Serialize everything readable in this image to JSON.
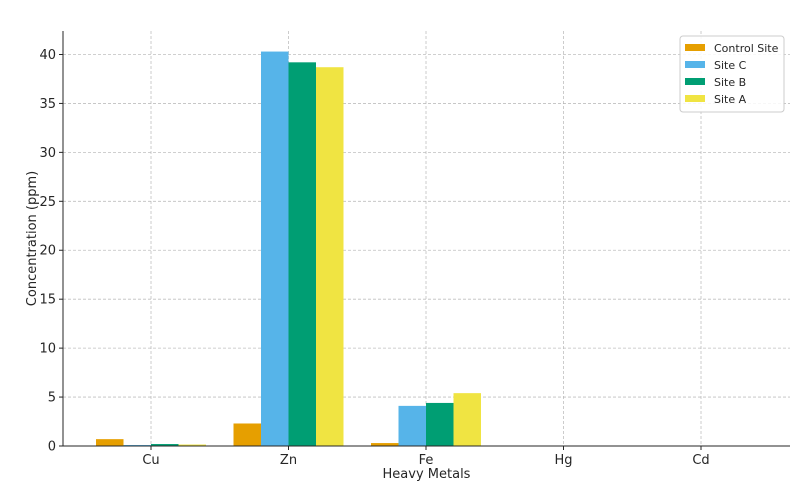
{
  "chart_data": {
    "type": "bar",
    "title": "",
    "xlabel": "Heavy Metals",
    "ylabel": "Concentration (ppm)",
    "categories": [
      "Cu",
      "Zn",
      "Fe",
      "Hg",
      "Cd"
    ],
    "ylim": [
      0,
      42.4
    ],
    "yticks": [
      0,
      5,
      10,
      15,
      20,
      25,
      30,
      35,
      40
    ],
    "grid": true,
    "legend_position": "top-right",
    "series": [
      {
        "name": "Control Site",
        "color": "#E69F00",
        "values": [
          0.7,
          2.3,
          0.3,
          0.01,
          0.02
        ]
      },
      {
        "name": "Site C",
        "color": "#56B4E9",
        "values": [
          0.1,
          40.3,
          4.1,
          0.01,
          0.01
        ]
      },
      {
        "name": "Site B",
        "color": "#009E73",
        "values": [
          0.2,
          39.2,
          4.4,
          0.01,
          0.01
        ]
      },
      {
        "name": "Site A",
        "color": "#F0E442",
        "values": [
          0.15,
          38.7,
          5.4,
          0.01,
          0.05
        ]
      }
    ]
  }
}
